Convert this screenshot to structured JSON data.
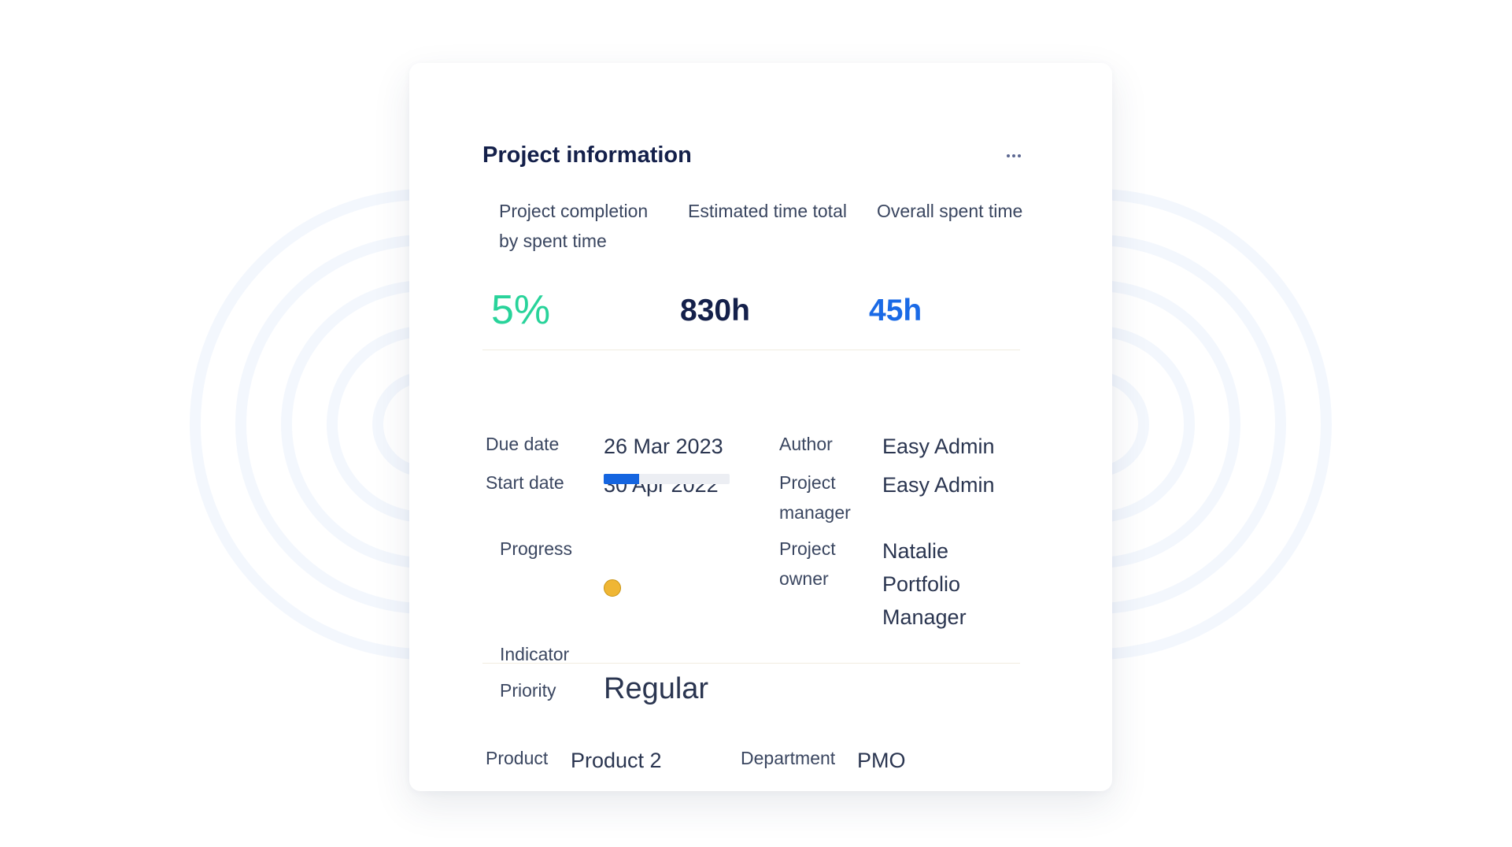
{
  "card": {
    "title": "Project information",
    "more_icon": "ellipsis-horizontal-icon"
  },
  "stats": {
    "completion": {
      "label": "Project completion by spent time",
      "value": "5%",
      "color": "#28d39a"
    },
    "estimated": {
      "label": "Estimated time total",
      "value": "830h",
      "color": "#14204a"
    },
    "spent": {
      "label": "Overall spent time",
      "value": "45h",
      "color": "#1a6ae6"
    }
  },
  "details": {
    "due_date": {
      "label": "Due date",
      "value": "26 Mar 2023"
    },
    "start_date": {
      "label": "Start date",
      "value": "30 Apr 2022"
    },
    "progress": {
      "label": "Progress",
      "percent": 28,
      "color": "#1565e0"
    },
    "indicator": {
      "label": "Indicator",
      "color": "#efb634"
    },
    "priority": {
      "label": "Priority",
      "value": "Regular"
    },
    "author": {
      "label": "Author",
      "value": "Easy Admin"
    },
    "project_manager": {
      "label": "Project manager",
      "value": "Easy Admin"
    },
    "project_owner": {
      "label": "Project owner",
      "value": "Natalie Portfolio Manager"
    }
  },
  "custom_fields": {
    "product": {
      "label": "Product",
      "value": "Product 2"
    },
    "department": {
      "label": "Department",
      "value": "PMO"
    }
  }
}
